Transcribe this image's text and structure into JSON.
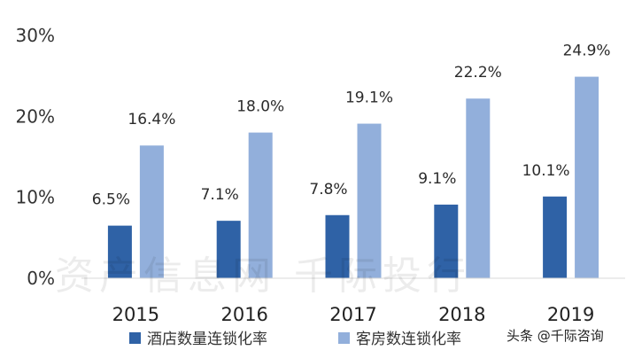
{
  "chart_data": {
    "type": "bar",
    "categories": [
      "2015",
      "2016",
      "2017",
      "2018",
      "2019"
    ],
    "series": [
      {
        "name": "酒店数量连锁化率",
        "color": "#2f62a6",
        "values": [
          6.5,
          7.1,
          7.8,
          9.1,
          10.1
        ],
        "labels": [
          "6.5%",
          "7.1%",
          "7.8%",
          "9.1%",
          "10.1%"
        ]
      },
      {
        "name": "客房数连锁化率",
        "color": "#92afdb",
        "values": [
          16.4,
          18.0,
          19.1,
          22.2,
          24.9
        ],
        "labels": [
          "16.4%",
          "18.0%",
          "19.1%",
          "22.2%",
          "24.9%"
        ]
      }
    ],
    "yticks": [
      "0%",
      "10%",
      "20%",
      "30%"
    ],
    "ylim": [
      0,
      30
    ],
    "legend_position": "bottom",
    "grid": false
  },
  "watermark": "资产信息网 千际投行",
  "credit": "头条 @千际咨询"
}
